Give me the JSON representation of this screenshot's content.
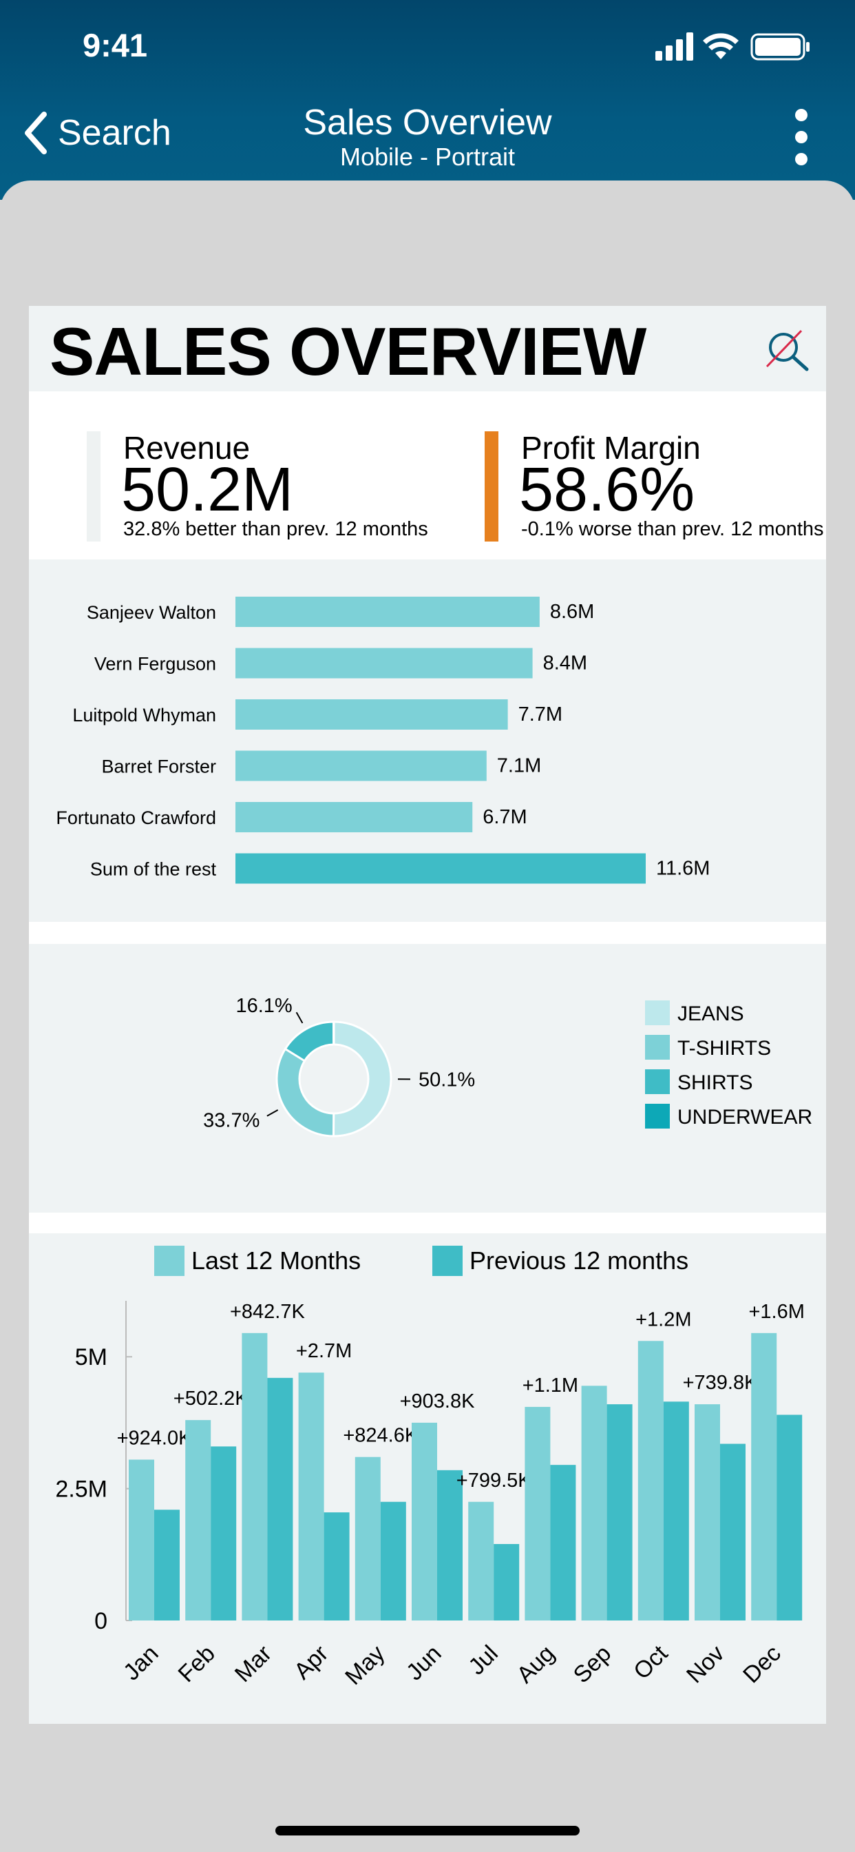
{
  "status": {
    "time": "9:41"
  },
  "nav": {
    "back_label": "Search",
    "title": "Sales Overview",
    "subtitle": "Mobile - Portrait"
  },
  "page": {
    "title": "SALES OVERVIEW"
  },
  "kpis": [
    {
      "label": "Revenue",
      "value": "50.2M",
      "note": "32.8% better than prev. 12 months",
      "bar_color": "#eef2f2"
    },
    {
      "label": "Profit Margin",
      "value": "58.6%",
      "note": "-0.1% worse than prev. 12 months",
      "bar_color": "#e6801e"
    }
  ],
  "colors": {
    "teal_light": "#7dd1d7",
    "teal_mid": "#3fbcc6",
    "jeans": "#bde8ec",
    "tshirts": "#7dd1d7",
    "shirts": "#3fbcc6",
    "underwear": "#0da8b7"
  },
  "chart_data": [
    {
      "type": "bar",
      "orientation": "horizontal",
      "categories": [
        "Sanjeev Walton",
        "Vern Ferguson",
        "Luitpold Whyman",
        "Barret Forster",
        "Fortunato Crawford",
        "Sum of the rest"
      ],
      "values": [
        8.6,
        8.4,
        7.7,
        7.1,
        6.7,
        11.6
      ],
      "labels": [
        "8.6M",
        "8.4M",
        "7.7M",
        "7.1M",
        "6.7M",
        "11.6M"
      ]
    },
    {
      "type": "pie",
      "donut": true,
      "slices": [
        {
          "name": "JEANS",
          "value": 50.1,
          "label": "50.1%"
        },
        {
          "name": "T-SHIRTS",
          "value": 33.7,
          "label": "33.7%"
        },
        {
          "name": "SHIRTS",
          "value": 16.1,
          "label": "16.1%"
        },
        {
          "name": "UNDERWEAR",
          "value": 0.1,
          "label": ""
        }
      ],
      "legend": [
        "JEANS",
        "T-SHIRTS",
        "SHIRTS",
        "UNDERWEAR"
      ],
      "legend_position": "right"
    },
    {
      "type": "bar",
      "categories": [
        "Jan",
        "Feb",
        "Mar",
        "Apr",
        "May",
        "Jun",
        "Jul",
        "Aug",
        "Sep",
        "Oct",
        "Nov",
        "Dec"
      ],
      "series": [
        {
          "name": "Last 12 Months",
          "values": [
            3.05,
            3.8,
            5.45,
            4.7,
            3.1,
            3.75,
            2.25,
            4.05,
            4.45,
            5.3,
            4.1,
            5.45
          ]
        },
        {
          "name": "Previous 12 months",
          "values": [
            2.1,
            3.3,
            4.6,
            2.05,
            2.25,
            2.85,
            1.45,
            2.95,
            4.1,
            4.15,
            3.35,
            3.9
          ]
        }
      ],
      "diff_labels": [
        "+924.0K",
        "+502.2K",
        "+842.7K",
        "+2.7M",
        "+824.6K",
        "+903.8K",
        "+799.5K",
        "+1.1M",
        "",
        "+1.2M",
        "+739.8K",
        "+1.6M"
      ],
      "y_ticks": [
        "0",
        "2.5M",
        "5M"
      ],
      "ylim": [
        0,
        5.8
      ],
      "legend_position": "top"
    }
  ]
}
